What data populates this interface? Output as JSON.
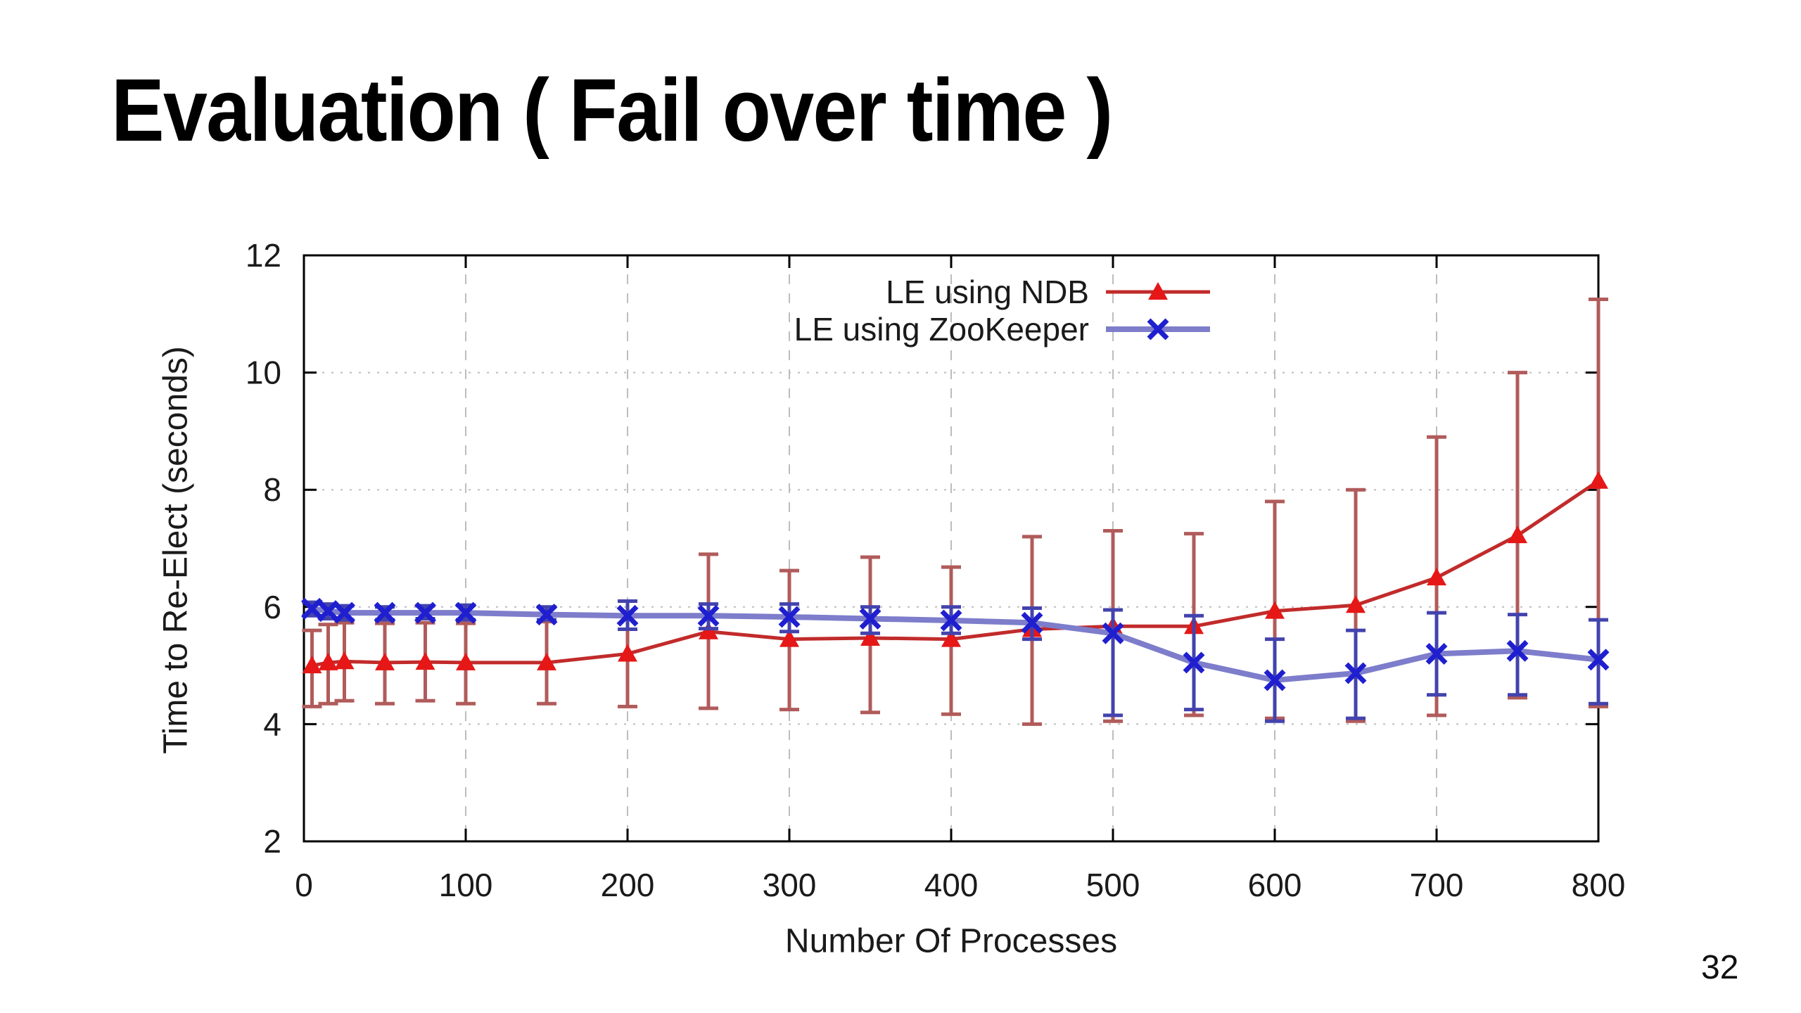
{
  "slide": {
    "title": "Evaluation ( Fail over time )",
    "page_number": "32"
  },
  "chart_data": {
    "type": "line",
    "title": "",
    "xlabel": "Number Of Processes",
    "ylabel": "Time to Re-Elect (seconds)",
    "xlim": [
      0,
      800
    ],
    "ylim": [
      2,
      12
    ],
    "xticks": [
      0,
      100,
      200,
      300,
      400,
      500,
      600,
      700,
      800
    ],
    "yticks": [
      2,
      4,
      6,
      8,
      10,
      12
    ],
    "grid": true,
    "legend_position": "top-right-inside",
    "axis_color": "#000000",
    "grid_color": "#bdbdbd",
    "text_color": "#1a1a1a",
    "x": [
      5,
      15,
      25,
      50,
      75,
      100,
      150,
      200,
      250,
      300,
      350,
      400,
      450,
      500,
      550,
      600,
      650,
      700,
      750,
      800
    ],
    "series": [
      {
        "name": "LE using NDB",
        "marker": "triangle",
        "line_color": "#c22b2b",
        "marker_color": "#e61717",
        "error_color": "#b15b5b",
        "line_width": 5,
        "values": [
          5.0,
          5.05,
          5.07,
          5.05,
          5.06,
          5.05,
          5.05,
          5.2,
          5.58,
          5.45,
          5.47,
          5.45,
          5.62,
          5.67,
          5.67,
          5.93,
          6.03,
          6.5,
          7.22,
          8.15
        ],
        "err_low": [
          4.3,
          4.35,
          4.4,
          4.35,
          4.4,
          4.35,
          4.35,
          4.3,
          4.27,
          4.25,
          4.2,
          4.17,
          4.0,
          4.05,
          4.15,
          4.1,
          4.05,
          4.15,
          4.45,
          4.3
        ],
        "err_high": [
          5.6,
          5.7,
          5.73,
          5.72,
          5.73,
          5.72,
          5.75,
          6.1,
          6.9,
          6.62,
          6.85,
          6.68,
          7.2,
          7.3,
          7.25,
          7.8,
          8.0,
          8.9,
          10.0,
          11.25
        ]
      },
      {
        "name": "LE using ZooKeeper",
        "marker": "x",
        "line_color": "#7d7dcb",
        "marker_color": "#1f1fd0",
        "error_color": "#4343ae",
        "line_width": 8,
        "values": [
          5.97,
          5.93,
          5.9,
          5.9,
          5.9,
          5.9,
          5.87,
          5.85,
          5.85,
          5.83,
          5.8,
          5.77,
          5.73,
          5.55,
          5.05,
          4.75,
          4.87,
          5.2,
          5.25,
          5.1
        ],
        "err_low": [
          5.85,
          5.8,
          5.78,
          5.78,
          5.8,
          5.78,
          5.78,
          5.62,
          5.63,
          5.58,
          5.55,
          5.55,
          5.45,
          4.15,
          4.25,
          4.05,
          4.1,
          4.5,
          4.5,
          4.35
        ],
        "err_high": [
          6.08,
          6.05,
          6.02,
          6.0,
          6.02,
          6.03,
          6.0,
          6.1,
          6.05,
          6.05,
          6.0,
          6.0,
          5.98,
          5.95,
          5.85,
          5.45,
          5.6,
          5.9,
          5.87,
          5.78
        ]
      }
    ]
  }
}
